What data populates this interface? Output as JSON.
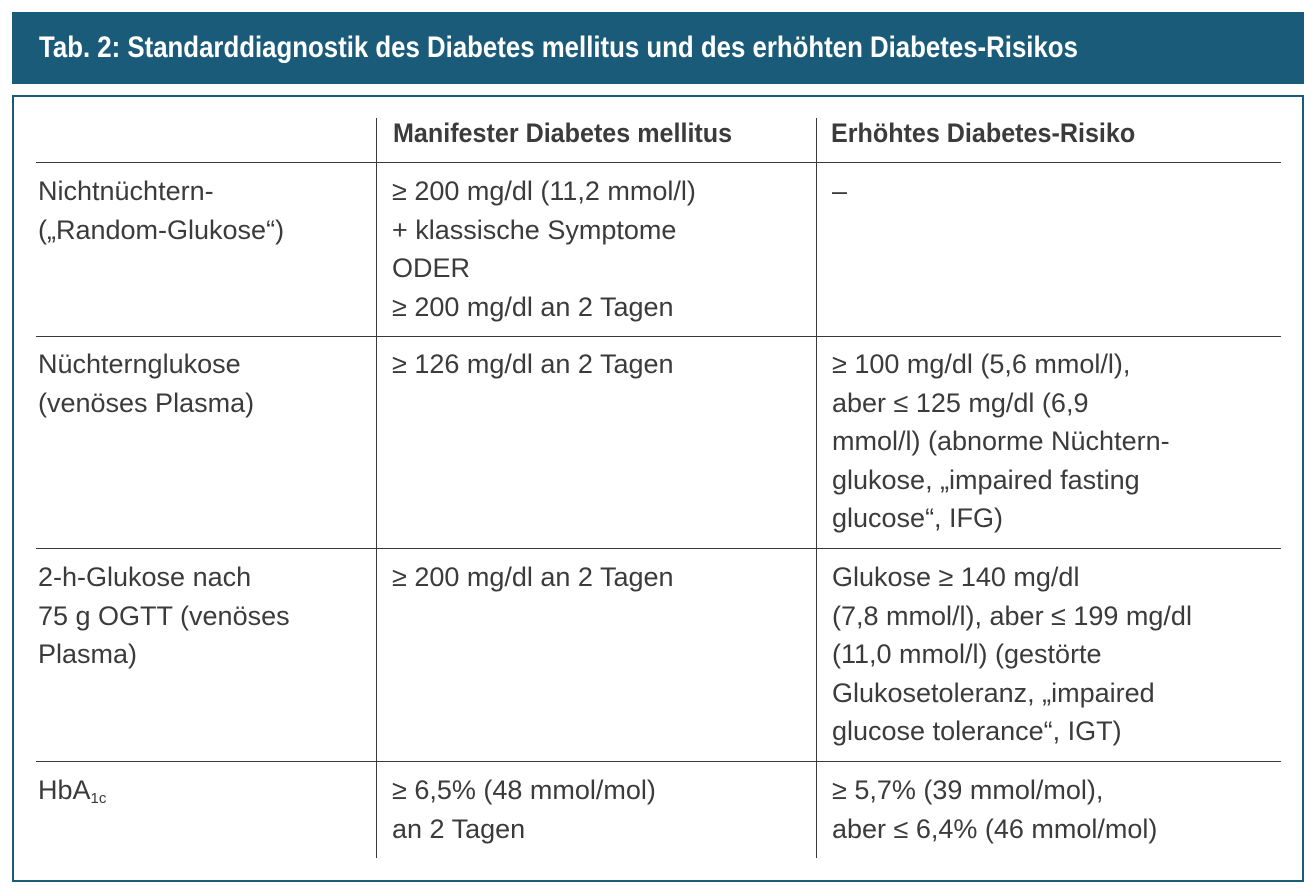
{
  "title": "Tab. 2: Standarddiagnostik des Diabetes mellitus und des erhöhten Diabetes-Risikos",
  "columns": {
    "manifest": "Manifester Diabetes mellitus",
    "risk": "Erhöhtes Diabetes-Risiko"
  },
  "rows": [
    {
      "label": [
        "Nichtnüchtern-",
        "(„Random-Glukose“)"
      ],
      "manifest": [
        "≥ 200 mg/dl (11,2 mmol/l)",
        "+ klassische Symptome",
        "ODER",
        "≥ 200 mg/dl an 2 Tagen"
      ],
      "risk": [
        "–"
      ]
    },
    {
      "label": [
        "Nüchternglukose",
        "(venöses Plasma)"
      ],
      "manifest": [
        "≥ 126 mg/dl an 2 Tagen"
      ],
      "risk": [
        "≥ 100 mg/dl (5,6 mmol/l),",
        "aber ≤ 125 mg/dl (6,9",
        "mmol/l) (abnorme Nüchtern-",
        "glukose, „impaired fasting",
        "glucose“, IFG)"
      ]
    },
    {
      "label": [
        "2-h-Glukose nach",
        "75 g OGTT (venöses",
        "Plasma)"
      ],
      "manifest": [
        "≥ 200 mg/dl an 2 Tagen"
      ],
      "risk": [
        "Glukose ≥ 140 mg/dl",
        "(7,8 mmol/l), aber ≤ 199 mg/dl",
        "(11,0 mmol/l) (gestörte",
        "Glukosetoleranz, „impaired",
        "glucose tolerance“, IGT)"
      ]
    },
    {
      "label_main": "HbA",
      "label_sub": "1c",
      "manifest": [
        "≥ 6,5% (48 mmol/mol)",
        "an 2 Tagen"
      ],
      "risk": [
        "≥ 5,7% (39 mmol/mol),",
        "aber ≤ 6,4% (46 mmol/mol)"
      ]
    }
  ]
}
